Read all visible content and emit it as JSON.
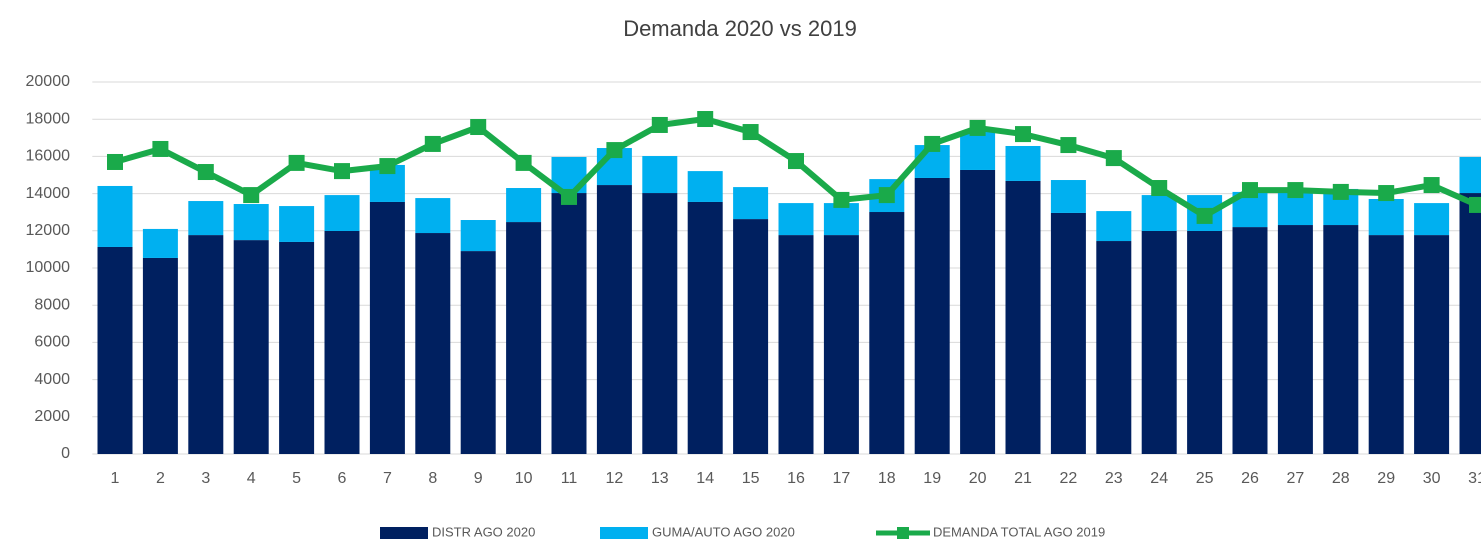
{
  "chart_data": {
    "type": "bar",
    "title": "Demanda 2020 vs 2019",
    "categories": [
      "1",
      "2",
      "3",
      "4",
      "5",
      "6",
      "7",
      "8",
      "9",
      "10",
      "11",
      "12",
      "13",
      "14",
      "15",
      "16",
      "17",
      "18",
      "19",
      "20",
      "21",
      "22",
      "23",
      "24",
      "25",
      "26",
      "27",
      "28",
      "29",
      "30",
      "31"
    ],
    "stacked": true,
    "series": [
      {
        "name": "DISTR AGO 2020",
        "color": "#002060",
        "type": "bar",
        "values": [
          11130,
          10540,
          11770,
          11500,
          11400,
          11990,
          13550,
          11880,
          10910,
          12470,
          14030,
          14460,
          14030,
          13550,
          12630,
          11770,
          11770,
          13010,
          14840,
          15270,
          14680,
          12960,
          11450,
          11990,
          11990,
          12200,
          12310,
          12310,
          11770,
          11770,
          14030
        ]
      },
      {
        "name": "GUMA/AUTO AGO 2020",
        "color": "#00b0f0",
        "type": "bar",
        "values": [
          3280,
          1560,
          1830,
          1940,
          1930,
          1930,
          1990,
          1880,
          1670,
          1830,
          1940,
          1990,
          1990,
          1660,
          1720,
          1720,
          1720,
          1770,
          1770,
          2040,
          1880,
          1770,
          1610,
          1930,
          1930,
          1890,
          1990,
          1940,
          1940,
          1720,
          1940
        ]
      },
      {
        "name": "DEMANDA TOTAL AGO 2019",
        "color": "#1aaa4a",
        "type": "line",
        "values": [
          15700,
          16400,
          15160,
          13920,
          15650,
          15210,
          15480,
          16670,
          17580,
          15650,
          13820,
          16340,
          17690,
          18010,
          17310,
          15750,
          13660,
          13920,
          16670,
          17530,
          17200,
          16610,
          15910,
          14300,
          12800,
          14190,
          14190,
          14090,
          14030,
          14460,
          13390
        ]
      }
    ],
    "ylim": [
      0,
      20000
    ],
    "yticks": [
      0,
      2000,
      4000,
      6000,
      8000,
      10000,
      12000,
      14000,
      16000,
      18000,
      20000
    ],
    "grid": true,
    "legend": "bottom"
  }
}
